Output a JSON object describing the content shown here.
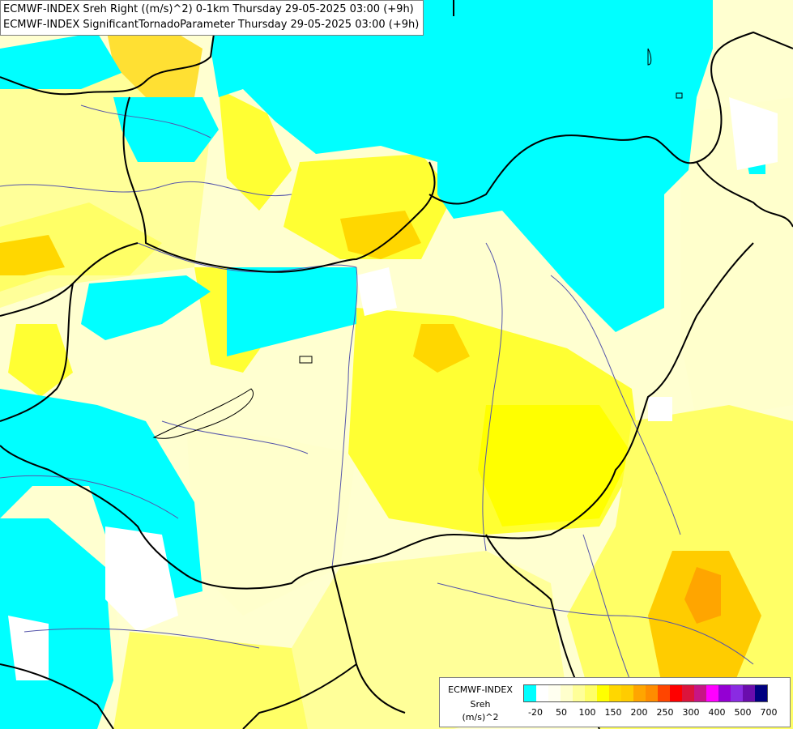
{
  "titles": {
    "line1": "ECMWF-INDEX Sreh Right ((m/s)^2) 0-1km Thursday 29-05-2025 03:00 (+9h)",
    "line2": "ECMWF-INDEX SignificantTornadoParameter Thursday 29-05-2025 03:00 (+9h)"
  },
  "legend": {
    "title": "ECMWF-INDEX",
    "variable": "Sreh",
    "unit": "(m/s)^2",
    "colors": [
      "#00ffff",
      "#ffffff",
      "#fffff0",
      "#ffffcc",
      "#ffff99",
      "#ffff66",
      "#ffff00",
      "#ffd700",
      "#ffcc00",
      "#ffa500",
      "#ff8c00",
      "#ff4500",
      "#ff0000",
      "#dc143c",
      "#c71585",
      "#ff00ff",
      "#9400d3",
      "#8a2be2",
      "#6a0dad",
      "#000080"
    ],
    "tick_labels": [
      "-20",
      "50",
      "100",
      "150",
      "200",
      "250",
      "300",
      "400",
      "500",
      "700"
    ]
  }
}
